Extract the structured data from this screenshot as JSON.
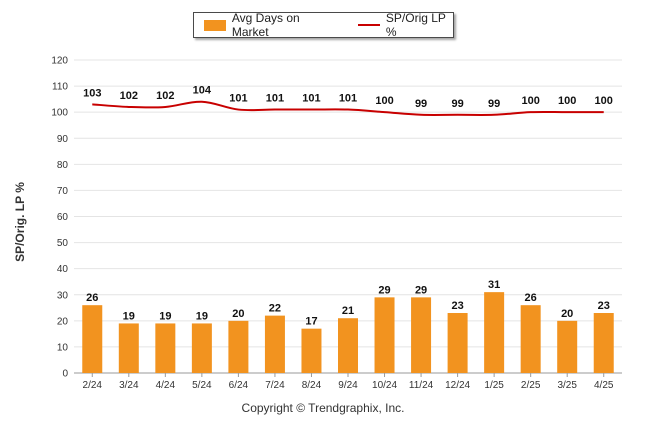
{
  "chart_data": {
    "type": "bar",
    "categories": [
      "2/24",
      "3/24",
      "4/24",
      "5/24",
      "6/24",
      "7/24",
      "8/24",
      "9/24",
      "10/24",
      "11/24",
      "12/24",
      "1/25",
      "2/25",
      "3/25",
      "4/25"
    ],
    "series": [
      {
        "name": "Avg Days on Market",
        "type": "bar",
        "color": "#F2931F",
        "values": [
          26,
          19,
          19,
          19,
          20,
          22,
          17,
          21,
          29,
          29,
          23,
          31,
          26,
          20,
          23
        ]
      },
      {
        "name": "SP/Orig LP %",
        "type": "line",
        "color": "#C80000",
        "values": [
          103,
          102,
          102,
          104,
          101,
          101,
          101,
          101,
          100,
          99,
          99,
          99,
          100,
          100,
          100
        ]
      }
    ],
    "ylabel": "SP/Orig. LP %",
    "ylim": [
      0,
      120
    ],
    "yticks": [
      0,
      10,
      20,
      30,
      40,
      50,
      60,
      70,
      80,
      90,
      100,
      110,
      120
    ],
    "grid": true,
    "legend_position": "top-center"
  },
  "footer": "Copyright © Trendgraphix, Inc."
}
